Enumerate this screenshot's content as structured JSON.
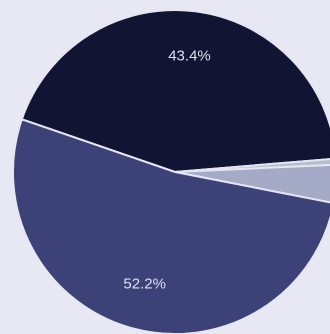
{
  "chart_data": {
    "type": "pie",
    "slices": [
      {
        "value": 43.4,
        "label": "43.4%",
        "color": "#111433"
      },
      {
        "value": 0.6,
        "label": "",
        "color": "#b8bccb"
      },
      {
        "value": 3.8,
        "label": "",
        "color": "#a5abc7"
      },
      {
        "value": 52.2,
        "label": "52.2%",
        "color": "#3c4177"
      }
    ],
    "edge_color": "#e4e6f0",
    "background": "#e8e8f4"
  }
}
